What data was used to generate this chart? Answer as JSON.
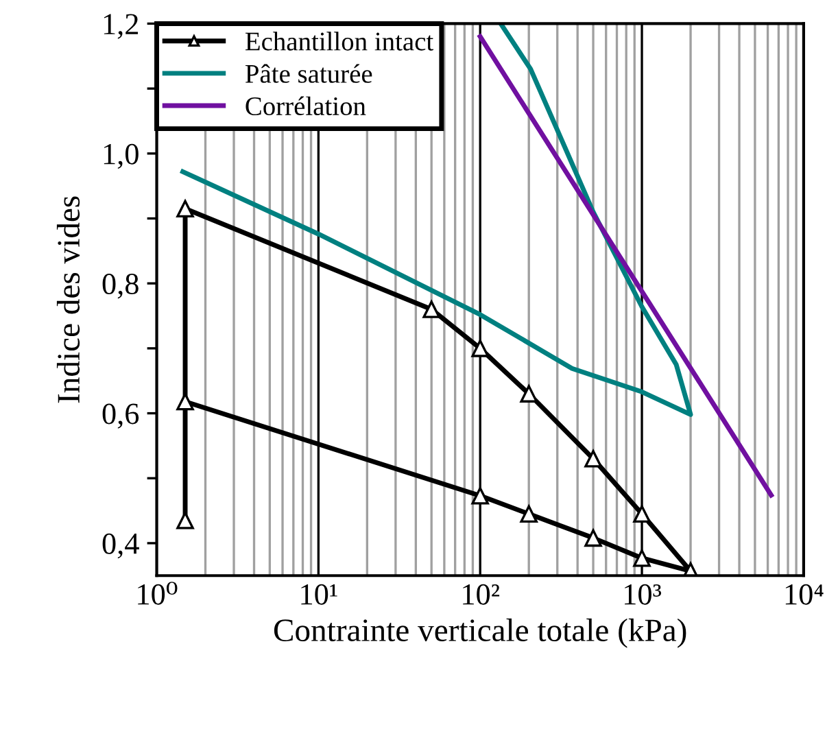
{
  "chart_data": {
    "type": "line",
    "xlabel": "Contrainte verticale totale (kPa)",
    "ylabel": "Indice des vides",
    "log": "x",
    "xlim": [
      1,
      10000
    ],
    "ylim": [
      0.35,
      1.2
    ],
    "xticks": [
      {
        "value": 1,
        "label": "10⁰"
      },
      {
        "value": 10,
        "label": "10¹"
      },
      {
        "value": 100,
        "label": "10²"
      },
      {
        "value": 1000,
        "label": "10³"
      },
      {
        "value": 10000,
        "label": "10⁴"
      }
    ],
    "yticks": [
      {
        "value": 0.4,
        "label": "0,4"
      },
      {
        "value": 0.5,
        "label": null
      },
      {
        "value": 0.6,
        "label": "0,6"
      },
      {
        "value": 0.7,
        "label": null
      },
      {
        "value": 0.8,
        "label": "0,8"
      },
      {
        "value": 0.9,
        "label": null
      },
      {
        "value": 1.0,
        "label": "1,0"
      },
      {
        "value": 1.1,
        "label": null
      },
      {
        "value": 1.2,
        "label": "1,2"
      }
    ],
    "grid": "x",
    "legend": "top left",
    "series": [
      {
        "name": "Echantillon intact",
        "color": "#000000",
        "marker": "triangle",
        "x": [
          1.5,
          1.5,
          50,
          100,
          200,
          500,
          1000,
          2000,
          1000,
          500,
          200,
          100,
          1.5
        ],
        "values": [
          0.435,
          0.915,
          0.76,
          0.7,
          0.63,
          0.53,
          0.445,
          0.357,
          0.377,
          0.408,
          0.445,
          0.473,
          0.618
        ]
      },
      {
        "name": "Pâte saturée",
        "color": "#008080",
        "x": [
          1.45,
          10,
          100,
          370,
          1000,
          2000,
          1630,
          1000,
          500,
          205,
          134
        ],
        "values": [
          0.972,
          0.876,
          0.752,
          0.669,
          0.633,
          0.598,
          0.675,
          0.764,
          0.91,
          1.13,
          1.2
        ]
      },
      {
        "name": "Corrélation",
        "color": "#7010a0",
        "x": [
          100,
          6300
        ],
        "values": [
          1.18,
          0.474
        ]
      }
    ]
  }
}
